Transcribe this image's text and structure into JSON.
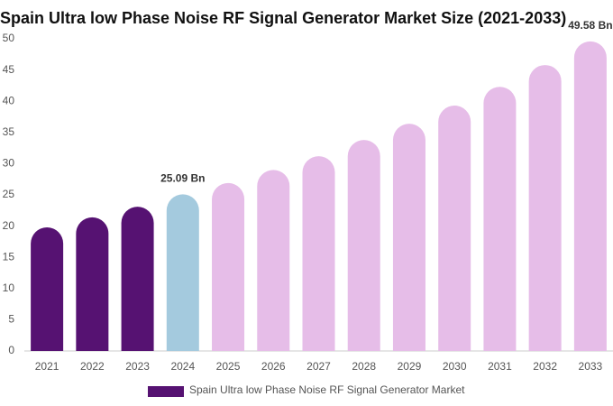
{
  "chart_data": {
    "type": "bar",
    "title": "Spain Ultra low Phase Noise RF Signal Generator Market Size (2021-2033)",
    "categories": [
      "2021",
      "2022",
      "2023",
      "2024",
      "2025",
      "2026",
      "2027",
      "2028",
      "2029",
      "2030",
      "2031",
      "2032",
      "2033"
    ],
    "series": [
      {
        "name": "Spain Ultra low Phase Noise RF Signal Generator Market",
        "color": "#561272",
        "values": [
          19.8,
          21.4,
          23.1,
          25.09,
          26.9,
          29.0,
          31.2,
          33.8,
          36.4,
          39.3,
          42.3,
          45.8,
          49.58
        ],
        "value_labels": [
          null,
          null,
          null,
          "25.09 Bn",
          null,
          null,
          null,
          null,
          null,
          null,
          null,
          null,
          "49.58 Bn"
        ],
        "bar_colors": [
          "#561272",
          "#561272",
          "#561272",
          "#a4cade",
          "#e6bde8",
          "#e6bde8",
          "#e6bde8",
          "#e6bde8",
          "#e6bde8",
          "#e6bde8",
          "#e6bde8",
          "#e6bde8",
          "#e6bde8"
        ]
      }
    ],
    "ylim": [
      0,
      50
    ],
    "yticks": [
      0,
      5,
      10,
      15,
      20,
      25,
      30,
      35,
      40,
      45,
      50
    ],
    "grid": false,
    "legend": "bottom"
  }
}
